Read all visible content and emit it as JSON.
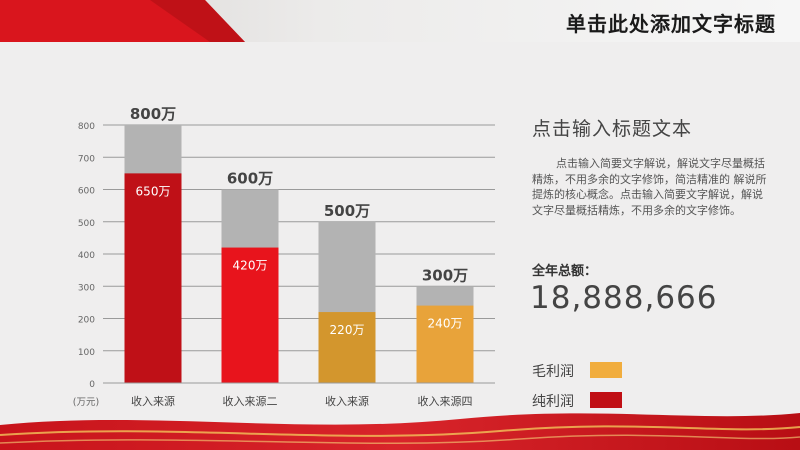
{
  "slide": {
    "title": "单击此处添加文字标题"
  },
  "side_panel": {
    "heading": "点击输入标题文本",
    "body": "点击输入简要文字解说，解说文字尽量概括精炼，不用多余的文字修饰，简洁精准的 解说所提炼的核心概念。点击输入简要文字解说，解说文字尽量概括精炼，不用多余的文字修饰。",
    "total_label": "全年总额：",
    "total_value": "18,888,666"
  },
  "colors": {
    "gross_bar": "#b3b3b3",
    "net_red_dark": "#bf1017",
    "net_red": "#e8141c",
    "net_orange": "#d3962d",
    "net_orange_light": "#e8a33a",
    "legend_gross": "#f1ad3d",
    "legend_net": "#c00f14",
    "grid": "#9a9a9a",
    "axis_text": "#666666"
  },
  "chart_data": {
    "type": "bar",
    "categories": [
      "收入来源",
      "收入来源二",
      "收入来源",
      "收入来源四"
    ],
    "y_unit_label": "(万元)",
    "ylim": [
      0,
      800
    ],
    "yticks": [
      0,
      100,
      200,
      300,
      400,
      500,
      600,
      700,
      800
    ],
    "grid": true,
    "series": [
      {
        "name": "毛利润",
        "values": [
          800,
          600,
          500,
          300
        ]
      },
      {
        "name": "纯利润",
        "values": [
          650,
          420,
          220,
          240
        ]
      }
    ],
    "total_labels": [
      "800万",
      "600万",
      "500万",
      "300万"
    ],
    "inner_labels": [
      "650万",
      "420万",
      "220万",
      "240万"
    ],
    "legend_position": "right"
  }
}
